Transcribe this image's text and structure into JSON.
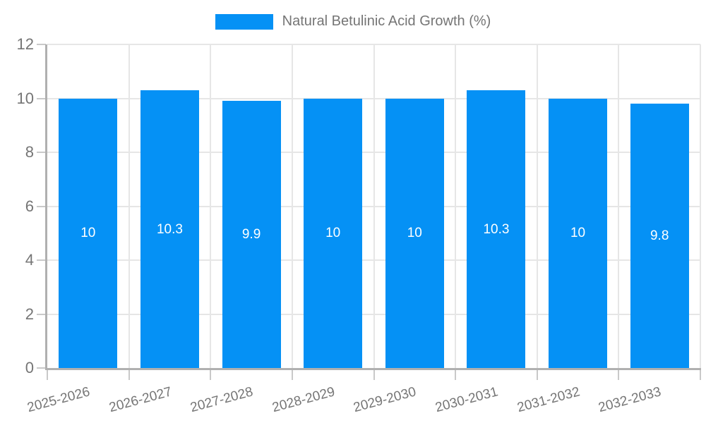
{
  "legend": {
    "label": "Natural Betulinic Acid Growth (%)"
  },
  "chart_data": {
    "type": "bar",
    "title": "Natural Betulinic Acid Growth (%)",
    "categories": [
      "2025-2026",
      "2026-2027",
      "2027-2028",
      "2028-2029",
      "2029-2030",
      "2030-2031",
      "2031-2032",
      "2032-2033"
    ],
    "values": [
      10,
      10.3,
      9.9,
      10,
      10,
      10.3,
      10,
      9.8
    ],
    "bar_labels": [
      "10",
      "10.3",
      "9.9",
      "10",
      "10",
      "10.3",
      "10",
      "9.8"
    ],
    "xlabel": "",
    "ylabel": "",
    "ylim": [
      0,
      12
    ],
    "yticks": [
      0,
      2,
      4,
      6,
      8,
      10,
      12
    ],
    "grid": true,
    "legend_position": "top",
    "x_label_rotation_deg": -15,
    "colors": {
      "bar": "#0591F5",
      "axis": "#B0B0B0",
      "grid": "#E6E6E6",
      "tick": "#C9C9C9",
      "text": "#757575",
      "value_label": "#FFFFFF"
    }
  }
}
